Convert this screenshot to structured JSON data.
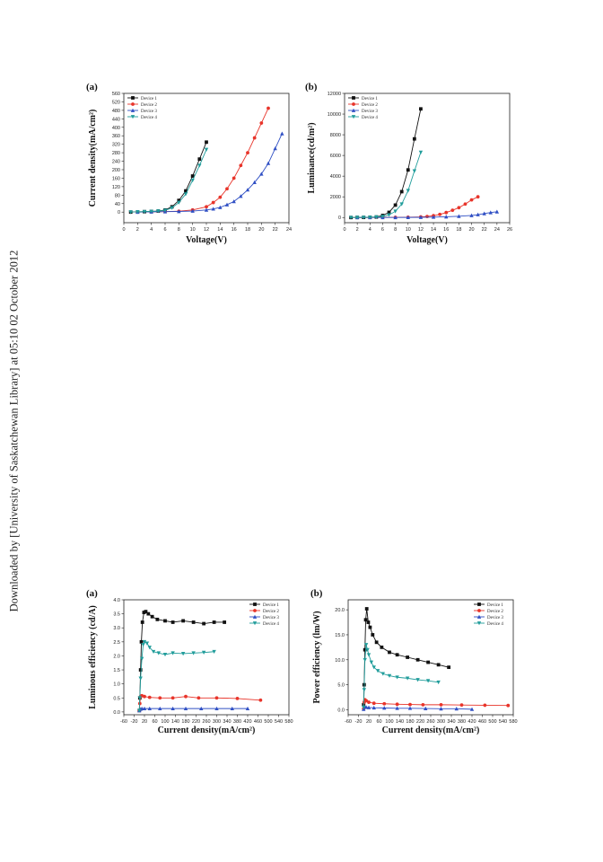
{
  "side_note": "Downloaded by [University of Saskatchewan Library] at 05:10 02 October 2012",
  "colors": [
    "#111111",
    "#e8342a",
    "#2f4fc4",
    "#219d9b"
  ],
  "chart_data": [
    {
      "id": "a1",
      "panel_label": "(a)",
      "type": "line",
      "xlabel": "Voltage(V)",
      "ylabel": "Current density(mA/cm²)",
      "xlim": [
        0,
        24
      ],
      "ylim": [
        -50,
        560
      ],
      "xticks": [
        0,
        2,
        4,
        6,
        8,
        10,
        12,
        14,
        16,
        18,
        20,
        22,
        24
      ],
      "yticks": [
        0,
        40,
        80,
        120,
        160,
        200,
        240,
        280,
        320,
        360,
        400,
        440,
        480,
        520,
        560
      ],
      "legend": "top-left",
      "series": [
        {
          "name": "Device 1",
          "marker": "square",
          "x": [
            1,
            2,
            3,
            4,
            5,
            6,
            7,
            8,
            9,
            10,
            11,
            12
          ],
          "y": [
            0,
            1,
            2,
            3,
            5,
            10,
            25,
            55,
            100,
            170,
            250,
            330
          ]
        },
        {
          "name": "Device 2",
          "marker": "circle",
          "x": [
            2,
            4,
            6,
            8,
            10,
            12,
            13,
            14,
            15,
            16,
            17,
            18,
            19,
            20,
            21
          ],
          "y": [
            0,
            1,
            2,
            4,
            10,
            25,
            45,
            70,
            110,
            160,
            220,
            280,
            350,
            420,
            490
          ]
        },
        {
          "name": "Device 3",
          "marker": "triangle-up",
          "x": [
            2,
            4,
            6,
            8,
            10,
            12,
            13,
            14,
            15,
            16,
            17,
            18,
            19,
            20,
            21,
            22,
            23
          ],
          "y": [
            0,
            1,
            2,
            3,
            5,
            10,
            15,
            22,
            35,
            50,
            75,
            105,
            140,
            180,
            230,
            300,
            370
          ]
        },
        {
          "name": "Device 4",
          "marker": "triangle-down",
          "x": [
            1,
            2,
            3,
            4,
            5,
            6,
            7,
            8,
            9,
            10,
            11,
            12
          ],
          "y": [
            0,
            1,
            2,
            3,
            5,
            8,
            20,
            45,
            85,
            150,
            220,
            295
          ]
        }
      ]
    },
    {
      "id": "b1",
      "panel_label": "(b)",
      "type": "line",
      "xlabel": "Voltage(V)",
      "ylabel": "Luminance(cd/m²)",
      "xlim": [
        0,
        26
      ],
      "ylim": [
        -500,
        12000
      ],
      "xticks": [
        0,
        2,
        4,
        6,
        8,
        10,
        12,
        14,
        16,
        18,
        20,
        22,
        24,
        26
      ],
      "yticks": [
        0,
        2000,
        4000,
        6000,
        8000,
        10000,
        12000
      ],
      "legend": "top-left",
      "series": [
        {
          "name": "Device 1",
          "marker": "square",
          "x": [
            1,
            2,
            3,
            4,
            5,
            6,
            7,
            8,
            9,
            10,
            11,
            12
          ],
          "y": [
            0,
            5,
            10,
            20,
            50,
            200,
            500,
            1200,
            2500,
            4600,
            7600,
            10500
          ]
        },
        {
          "name": "Device 2",
          "marker": "circle",
          "x": [
            2,
            4,
            6,
            8,
            10,
            12,
            13,
            14,
            15,
            16,
            17,
            18,
            19,
            20,
            21
          ],
          "y": [
            0,
            2,
            5,
            15,
            30,
            60,
            100,
            180,
            300,
            480,
            700,
            950,
            1300,
            1700,
            2000
          ]
        },
        {
          "name": "Device 3",
          "marker": "triangle-up",
          "x": [
            2,
            4,
            6,
            8,
            10,
            12,
            14,
            16,
            18,
            20,
            21,
            22,
            23,
            24
          ],
          "y": [
            0,
            1,
            2,
            5,
            10,
            20,
            40,
            70,
            120,
            200,
            280,
            380,
            480,
            560
          ]
        },
        {
          "name": "Device 4",
          "marker": "triangle-down",
          "x": [
            1,
            2,
            3,
            4,
            5,
            6,
            7,
            8,
            9,
            10,
            11,
            12
          ],
          "y": [
            0,
            5,
            10,
            20,
            50,
            100,
            250,
            600,
            1300,
            2600,
            4500,
            6300
          ]
        }
      ]
    },
    {
      "id": "a2",
      "panel_label": "(a)",
      "type": "line",
      "xlabel": "Current density(mA/cm²)",
      "ylabel": "Luminous efficiency (cd/A)",
      "xlim": [
        -60,
        580
      ],
      "ylim": [
        -0.1,
        4.0
      ],
      "xticks": [
        -60,
        -20,
        20,
        60,
        100,
        140,
        180,
        220,
        260,
        300,
        340,
        380,
        420,
        460,
        500,
        540,
        580
      ],
      "xtick_labels": [
        "-60",
        "-20",
        "20",
        "60",
        "100",
        "140",
        "180",
        "220",
        "260",
        "300",
        "340",
        "380",
        "420",
        "460",
        "500",
        "540",
        "580"
      ],
      "yticks": [
        0.0,
        0.5,
        1.0,
        1.5,
        2.0,
        2.5,
        3.0,
        3.5,
        4.0
      ],
      "ytick_labels": [
        "0.0",
        "0.5",
        "1.0",
        "1.5",
        "2.0",
        "2.5",
        "3.0",
        "3.5",
        "4.0"
      ],
      "legend": "top-right",
      "series": [
        {
          "name": "Device 1",
          "marker": "square",
          "x": [
            0,
            2,
            5,
            8,
            12,
            18,
            25,
            35,
            50,
            70,
            100,
            130,
            170,
            210,
            250,
            290,
            330
          ],
          "y": [
            0.05,
            0.5,
            1.5,
            2.5,
            3.2,
            3.55,
            3.58,
            3.5,
            3.4,
            3.3,
            3.25,
            3.2,
            3.25,
            3.2,
            3.15,
            3.2,
            3.2
          ]
        },
        {
          "name": "Device 2",
          "marker": "circle",
          "x": [
            0,
            2,
            5,
            10,
            20,
            40,
            80,
            130,
            180,
            230,
            300,
            380,
            470
          ],
          "y": [
            0.05,
            0.3,
            0.55,
            0.58,
            0.55,
            0.52,
            0.5,
            0.5,
            0.55,
            0.5,
            0.5,
            0.48,
            0.42
          ]
        },
        {
          "name": "Device 3",
          "marker": "triangle-up",
          "x": [
            0,
            5,
            10,
            20,
            40,
            80,
            130,
            180,
            240,
            300,
            360,
            420
          ],
          "y": [
            0.05,
            0.1,
            0.12,
            0.12,
            0.12,
            0.12,
            0.12,
            0.12,
            0.12,
            0.12,
            0.12,
            0.12
          ]
        },
        {
          "name": "Device 4",
          "marker": "triangle-down",
          "x": [
            0,
            2,
            5,
            10,
            15,
            20,
            30,
            40,
            55,
            75,
            100,
            130,
            170,
            210,
            250,
            290
          ],
          "y": [
            0.05,
            0.5,
            1.2,
            1.9,
            2.4,
            2.5,
            2.45,
            2.3,
            2.15,
            2.1,
            2.05,
            2.1,
            2.08,
            2.1,
            2.12,
            2.15
          ]
        }
      ]
    },
    {
      "id": "b2",
      "panel_label": "(b)",
      "type": "line",
      "xlabel": "Current density(mA/cm²)",
      "ylabel": "Power efficiency (lm/W)",
      "xlim": [
        -60,
        580
      ],
      "ylim": [
        -1,
        22
      ],
      "xticks": [
        -60,
        -20,
        20,
        60,
        100,
        140,
        180,
        220,
        260,
        300,
        340,
        380,
        420,
        460,
        500,
        540,
        580
      ],
      "xtick_labels": [
        "-60",
        "-20",
        "20",
        "60",
        "100",
        "140",
        "180",
        "220",
        "260",
        "300",
        "340",
        "380",
        "420",
        "460",
        "500",
        "540",
        "580"
      ],
      "yticks": [
        0,
        5,
        10,
        15,
        20
      ],
      "ytick_labels": [
        "0.0",
        "5.0",
        "10.0",
        "15.0",
        "20.0"
      ],
      "legend": "top-right",
      "series": [
        {
          "name": "Device 1",
          "marker": "square",
          "x": [
            0,
            2,
            5,
            8,
            12,
            18,
            25,
            35,
            50,
            70,
            100,
            130,
            170,
            210,
            250,
            290,
            330
          ],
          "y": [
            1,
            5,
            12,
            18,
            20.2,
            17.5,
            16.5,
            15,
            13.5,
            12.5,
            11.5,
            11,
            10.5,
            10,
            9.5,
            9,
            8.5
          ]
        },
        {
          "name": "Device 2",
          "marker": "circle",
          "x": [
            0,
            2,
            5,
            10,
            20,
            40,
            80,
            130,
            180,
            230,
            300,
            380,
            470,
            560
          ],
          "y": [
            0.2,
            1.5,
            2,
            1.8,
            1.5,
            1.3,
            1.2,
            1.1,
            1.05,
            1,
            1,
            0.95,
            0.9,
            0.85
          ]
        },
        {
          "name": "Device 3",
          "marker": "triangle-up",
          "x": [
            0,
            5,
            10,
            20,
            40,
            80,
            130,
            180,
            240,
            300,
            360,
            420
          ],
          "y": [
            0.1,
            0.5,
            0.5,
            0.45,
            0.4,
            0.35,
            0.3,
            0.3,
            0.25,
            0.2,
            0.2,
            0.1
          ]
        },
        {
          "name": "Device 4",
          "marker": "triangle-down",
          "x": [
            0,
            2,
            5,
            10,
            15,
            20,
            30,
            40,
            55,
            75,
            100,
            130,
            170,
            210,
            250,
            290
          ],
          "y": [
            0.5,
            4,
            10,
            13,
            12,
            11,
            9.5,
            8.5,
            7.8,
            7.2,
            6.8,
            6.5,
            6.3,
            6,
            5.8,
            5.5
          ]
        }
      ]
    }
  ]
}
